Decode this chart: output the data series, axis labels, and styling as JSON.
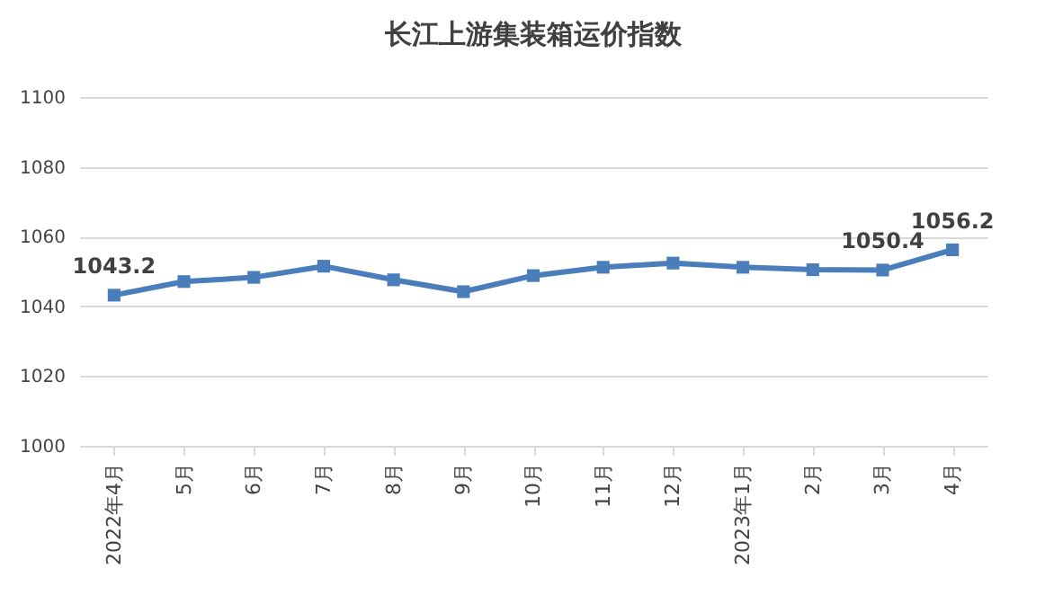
{
  "chart_data": {
    "type": "line",
    "title": "长江上游集装箱运价指数",
    "categories": [
      "2022年4月",
      "5月",
      "6月",
      "7月",
      "8月",
      "9月",
      "10月",
      "11月",
      "12月",
      "2023年1月",
      "2月",
      "3月",
      "4月"
    ],
    "series": [
      {
        "color": "#4a7ebb",
        "values": [
          1043.2,
          1047.1,
          1048.3,
          1051.5,
          1047.6,
          1044.2,
          1048.8,
          1051.2,
          1052.4,
          1051.2,
          1050.5,
          1050.4,
          1056.2
        ],
        "value_labels": [
          "1043.2",
          null,
          null,
          null,
          null,
          null,
          null,
          null,
          null,
          null,
          null,
          "1050.4",
          "1056.2"
        ]
      }
    ],
    "ylim": [
      1000,
      1100
    ],
    "yticks": [
      1000,
      1020,
      1040,
      1060,
      1080,
      1100
    ],
    "grid": "y",
    "marker": "square",
    "line_style": "solid"
  }
}
